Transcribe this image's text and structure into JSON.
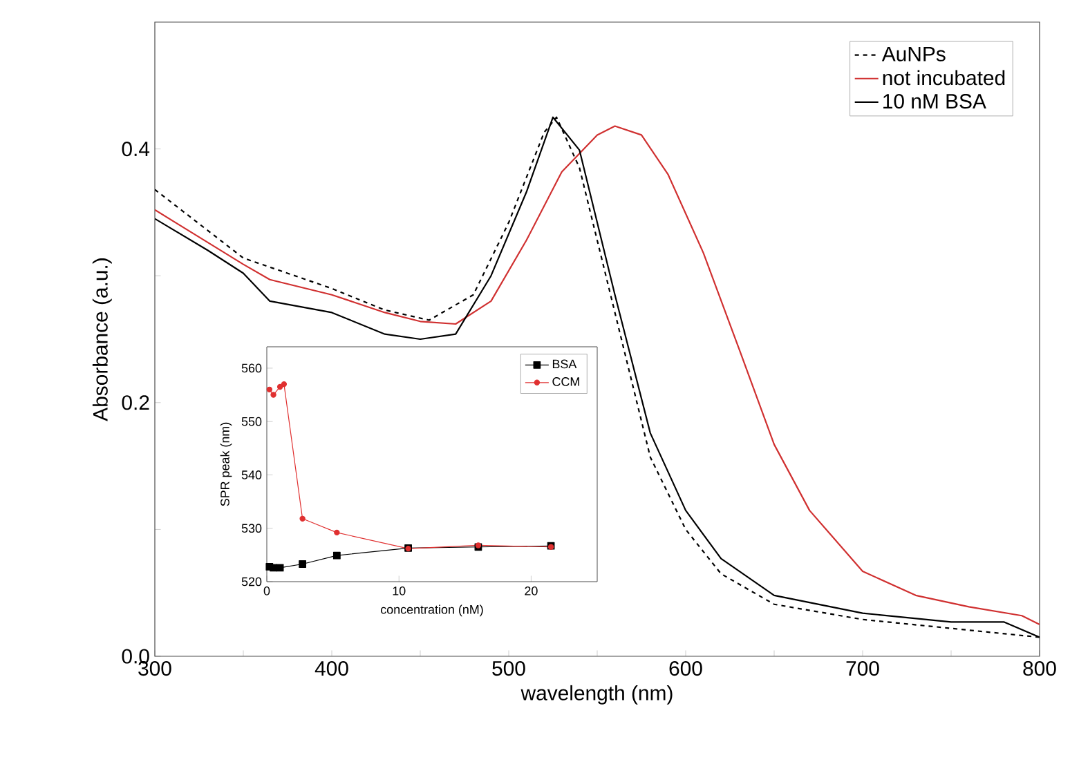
{
  "chart_data": [
    {
      "type": "line",
      "xlabel": "wavelength (nm)",
      "ylabel": "Absorbance (a.u.)",
      "xlim": [
        300,
        800
      ],
      "ylim": [
        0,
        0.5
      ],
      "xticks": [
        300,
        {
          "value": 350,
          "label": null
        },
        400,
        {
          "value": 450,
          "label": null
        },
        500,
        {
          "value": 550,
          "label": null
        },
        600,
        {
          "value": 650,
          "label": null
        },
        700,
        {
          "value": 750,
          "label": null
        },
        800
      ],
      "yticks": [
        {
          "value": 0,
          "label": "0.0"
        },
        {
          "value": 0.1,
          "label": null
        },
        {
          "value": 0.2,
          "label": "0.2"
        },
        {
          "value": 0.3,
          "label": null
        },
        {
          "value": 0.4,
          "label": "0.4"
        }
      ],
      "legend": "top right",
      "grid": false,
      "marker": "none",
      "series": [
        {
          "name": "AuNPs",
          "color": "#000000",
          "line_style": "dashed",
          "x": [
            300,
            350,
            400,
            430,
            455,
            480,
            500,
            520,
            527,
            540,
            560,
            580,
            600,
            620,
            650,
            700,
            750,
            800
          ],
          "values": [
            0.368,
            0.314,
            0.29,
            0.273,
            0.265,
            0.285,
            0.342,
            0.413,
            0.425,
            0.385,
            0.271,
            0.157,
            0.1,
            0.065,
            0.041,
            0.029,
            0.022,
            0.015
          ]
        },
        {
          "name": "not incubated",
          "color": "#d03030",
          "line_style": "solid",
          "x": [
            300,
            350,
            365,
            400,
            430,
            450,
            470,
            490,
            510,
            530,
            550,
            560,
            575,
            590,
            610,
            630,
            650,
            670,
            700,
            730,
            760,
            790,
            800
          ],
          "values": [
            0.352,
            0.309,
            0.297,
            0.285,
            0.271,
            0.264,
            0.262,
            0.28,
            0.328,
            0.382,
            0.411,
            0.418,
            0.411,
            0.38,
            0.318,
            0.243,
            0.167,
            0.115,
            0.067,
            0.048,
            0.039,
            0.032,
            0.025
          ]
        },
        {
          "name": "10 nM BSA",
          "color": "#000000",
          "line_style": "solid",
          "x": [
            300,
            330,
            350,
            365,
            400,
            430,
            450,
            470,
            490,
            510,
            525,
            540,
            560,
            580,
            600,
            620,
            650,
            700,
            750,
            780,
            800
          ],
          "values": [
            0.345,
            0.32,
            0.302,
            0.28,
            0.271,
            0.254,
            0.25,
            0.254,
            0.3,
            0.366,
            0.425,
            0.399,
            0.285,
            0.176,
            0.115,
            0.077,
            0.048,
            0.034,
            0.027,
            0.027,
            0.015
          ]
        }
      ]
    },
    {
      "type": "line",
      "xlabel": "concentration (nM)",
      "ylabel": "SPR peak (nm)",
      "xlim": [
        0,
        25
      ],
      "ylim": [
        520,
        564
      ],
      "xticks": [
        0,
        10,
        20
      ],
      "yticks": [
        520,
        530,
        540,
        550,
        560
      ],
      "legend": "top right",
      "grid": false,
      "series": [
        {
          "name": "BSA",
          "color": "#000000",
          "marker": "square",
          "x": [
            0.2,
            0.5,
            1,
            2.7,
            5.3,
            10.7,
            16,
            21.5
          ],
          "values": [
            522.8,
            522.6,
            522.6,
            523.3,
            524.9,
            526.3,
            526.5,
            526.7
          ]
        },
        {
          "name": "CCM",
          "color": "#e03030",
          "marker": "circle",
          "x": [
            0.2,
            0.5,
            1,
            1.3,
            2.7,
            5.3,
            10.7,
            16,
            21.5
          ],
          "values": [
            556,
            555,
            556.5,
            557,
            531.8,
            529.2,
            526.2,
            526.8,
            526.5
          ]
        }
      ]
    }
  ]
}
